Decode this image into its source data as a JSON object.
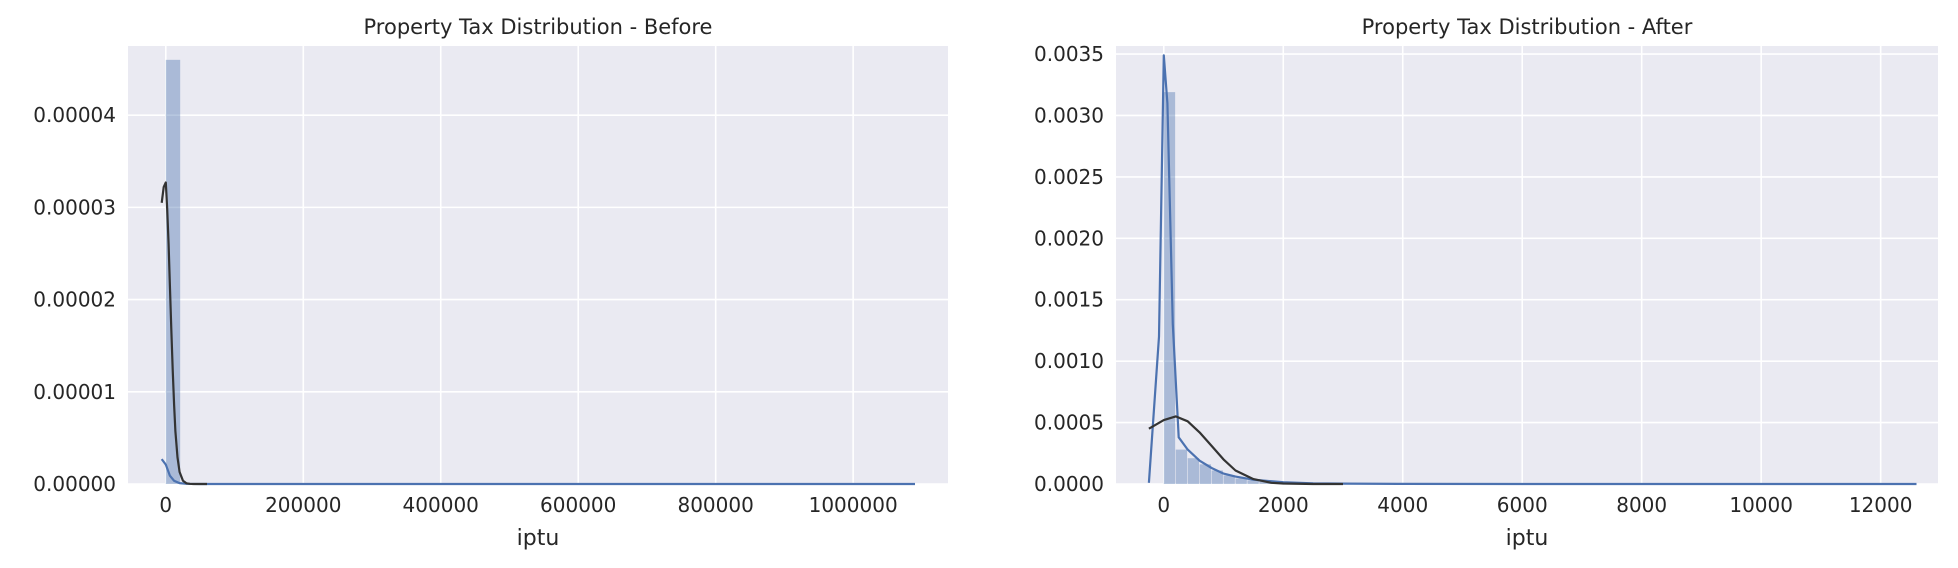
{
  "chart_data": [
    {
      "type": "histogram",
      "title": "Property Tax Distribution - Before",
      "xlabel": "iptu",
      "ylabel": "",
      "xlim": [
        -55000,
        1138000
      ],
      "ylim": [
        0,
        4.75e-05
      ],
      "xticks": [
        0,
        200000,
        400000,
        600000,
        800000,
        1000000
      ],
      "yticks": [
        0.0,
        1e-05,
        2e-05,
        3e-05,
        4e-05
      ],
      "ytick_labels": [
        "0.00000",
        "0.00001",
        "0.00002",
        "0.00003",
        "0.00004"
      ],
      "grid": true,
      "bin_edges": [
        0,
        21800
      ],
      "bin_heights": [
        4.6e-05
      ],
      "kde": {
        "x": [
          -6000,
          0,
          3000,
          6000,
          12000,
          20000,
          30000,
          50000,
          100000,
          300000,
          600000,
          1090000
        ],
        "y": [
          2.7e-06,
          2.1e-06,
          1.5e-06,
          9e-07,
          3.5e-07,
          1e-07,
          2e-08,
          5e-09,
          0,
          0,
          0,
          0
        ]
      },
      "normal_fit": {
        "x": [
          -6000,
          -3000,
          0,
          2000,
          4000,
          6000,
          8000,
          10000,
          12000,
          14000,
          17000,
          20000,
          25000,
          30000,
          35000,
          40000,
          50000,
          60000
        ],
        "y": [
          3.05e-05,
          3.22e-05,
          3.27e-05,
          2.98e-05,
          2.6e-05,
          2.15e-05,
          1.68e-05,
          1.24e-05,
          8.6e-06,
          5.7e-06,
          2.9e-06,
          1.3e-06,
          3.5e-07,
          8e-08,
          2e-08,
          0,
          0,
          0
        ]
      }
    },
    {
      "type": "histogram",
      "title": "Property Tax Distribution - After",
      "xlabel": "iptu",
      "ylabel": "",
      "xlim": [
        -800,
        12960
      ],
      "ylim": [
        0,
        0.0035655
      ],
      "xticks": [
        0,
        2000,
        4000,
        6000,
        8000,
        10000,
        12000
      ],
      "yticks": [
        0.0,
        0.0005,
        0.001,
        0.0015,
        0.002,
        0.0025,
        0.003,
        0.0035
      ],
      "ytick_labels": [
        "0.0000",
        "0.0005",
        "0.0010",
        "0.0015",
        "0.0020",
        "0.0025",
        "0.0030",
        "0.0035"
      ],
      "grid": true,
      "bin_edges": [
        0,
        200,
        400,
        600,
        800,
        1000,
        1200,
        1400,
        1600,
        1800,
        2000,
        2200,
        2400
      ],
      "bin_heights": [
        0.00319,
        0.00028,
        0.00021,
        0.00016,
        0.00011,
        7e-05,
        4.5e-05,
        3e-05,
        2e-05,
        1.3e-05,
        8e-06,
        5e-06
      ],
      "kde": {
        "x": [
          -250,
          -80,
          0,
          60,
          150,
          250,
          400,
          600,
          800,
          1000,
          1200,
          1500,
          2000,
          2500,
          3000,
          4000,
          6000,
          8000,
          10000,
          12600
        ],
        "y": [
          1e-05,
          0.0012,
          0.00349,
          0.0031,
          0.0013,
          0.00038,
          0.00028,
          0.00019,
          0.00013,
          8.5e-05,
          6e-05,
          3.5e-05,
          1.5e-05,
          6e-06,
          3e-06,
          1e-06,
          0,
          0,
          0,
          0
        ]
      },
      "normal_fit": {
        "x": [
          -250,
          0,
          200,
          400,
          600,
          800,
          1000,
          1200,
          1500,
          1800,
          2000,
          2500,
          3000
        ],
        "y": [
          0.00045,
          0.00052,
          0.00055,
          0.00051,
          0.00042,
          0.00031,
          0.0002,
          0.00011,
          4e-05,
          1e-05,
          4e-06,
          0,
          0
        ]
      }
    }
  ]
}
